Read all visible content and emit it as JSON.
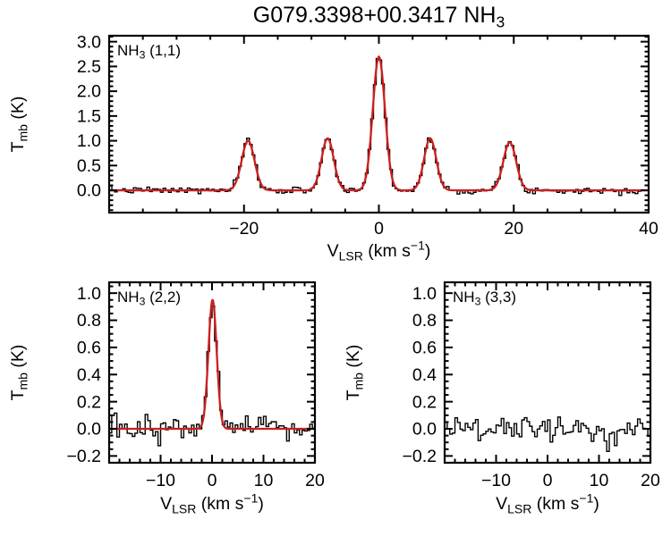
{
  "title_text": "G079.3398+00.3417 NH3",
  "title_parts": [
    {
      "t": "G079.3398+00.3417 NH"
    },
    {
      "t": "3",
      "s": "sub"
    }
  ],
  "colors": {
    "data": "#000000",
    "fit": "#cc1f1f",
    "axes": "#000000",
    "background": "#ffffff"
  },
  "chart_data": [
    {
      "type": "line",
      "panel": "NH3 (1,1)",
      "label_parts": [
        {
          "t": "NH"
        },
        {
          "t": "3",
          "s": "sub"
        },
        {
          "t": " (1,1)"
        }
      ],
      "xlabel_text": "V_LSR (km s-1)",
      "xlabel_parts": [
        {
          "t": "V"
        },
        {
          "t": "LSR",
          "s": "sub"
        },
        {
          "t": " (km s"
        },
        {
          "t": "−1",
          "s": "sup"
        },
        {
          "t": ")"
        }
      ],
      "ylabel_text": "T_mb (K)",
      "ylabel_parts": [
        {
          "t": "T"
        },
        {
          "t": "mb",
          "s": "sub"
        },
        {
          "t": " (K)"
        }
      ],
      "xlim": [
        -40,
        40
      ],
      "ylim": [
        -0.45,
        3.12
      ],
      "xticks": {
        "values": [
          -20,
          0,
          20,
          40
        ],
        "labels": [
          "−20",
          "0",
          "20",
          "40"
        ],
        "minor_step": 5
      },
      "yticks": {
        "values": [
          0.0,
          0.5,
          1.0,
          1.5,
          2.0,
          2.5,
          3.0
        ],
        "labels": [
          "0.0",
          "0.5",
          "1.0",
          "1.5",
          "2.0",
          "2.5",
          "3.0"
        ],
        "minor_step": 0.1
      },
      "series": [
        {
          "name": "observed NH3 (1,1) spectrum",
          "style": "histogram",
          "color": "#000000",
          "channel_width": 0.4,
          "noise_sigma": 0.033,
          "seed": 7
        },
        {
          "name": "hyperfine Gaussian fit",
          "style": "smooth",
          "color": "#cc1f1f"
        }
      ],
      "fit_peaks": [
        {
          "center": -19.4,
          "amplitude": 1.0,
          "sigma": 0.95
        },
        {
          "center": -7.6,
          "amplitude": 1.05,
          "sigma": 0.9
        },
        {
          "center": 0.0,
          "amplitude": 2.7,
          "sigma": 0.9
        },
        {
          "center": 7.6,
          "amplitude": 1.05,
          "sigma": 0.9
        },
        {
          "center": 19.4,
          "amplitude": 0.97,
          "sigma": 0.95
        }
      ]
    },
    {
      "type": "line",
      "panel": "NH3 (2,2)",
      "label_parts": [
        {
          "t": "NH"
        },
        {
          "t": "3",
          "s": "sub"
        },
        {
          "t": " (2,2)"
        }
      ],
      "xlabel_text": "V_LSR (km s-1)",
      "xlabel_parts": [
        {
          "t": "V"
        },
        {
          "t": "LSR",
          "s": "sub"
        },
        {
          "t": " (km s"
        },
        {
          "t": "−1",
          "s": "sup"
        },
        {
          "t": ")"
        }
      ],
      "ylabel_text": "T_mb (K)",
      "ylabel_parts": [
        {
          "t": "T"
        },
        {
          "t": "mb",
          "s": "sub"
        },
        {
          "t": " (K)"
        }
      ],
      "xlim": [
        -20,
        20
      ],
      "ylim": [
        -0.25,
        1.08
      ],
      "xticks": {
        "values": [
          -10,
          0,
          10,
          20
        ],
        "labels": [
          "−10",
          "0",
          "10",
          "20"
        ],
        "minor_step": 2
      },
      "yticks": {
        "values": [
          -0.2,
          0.0,
          0.2,
          0.4,
          0.6,
          0.8,
          1.0
        ],
        "labels": [
          "−0.2",
          "0.0",
          "0.2",
          "0.4",
          "0.6",
          "0.8",
          "1.0"
        ],
        "minor_step": 0.05
      },
      "series": [
        {
          "name": "observed NH3 (2,2) spectrum",
          "style": "histogram",
          "color": "#000000",
          "channel_width": 0.5,
          "noise_sigma": 0.045,
          "seed": 13
        },
        {
          "name": "Gaussian fit",
          "style": "smooth",
          "color": "#cc1f1f"
        }
      ],
      "fit_peaks": [
        {
          "center": 0.1,
          "amplitude": 0.95,
          "sigma": 0.8
        }
      ]
    },
    {
      "type": "line",
      "panel": "NH3 (3,3)",
      "label_parts": [
        {
          "t": "NH"
        },
        {
          "t": "3",
          "s": "sub"
        },
        {
          "t": " (3,3)"
        }
      ],
      "xlabel_text": "V_LSR (km s-1)",
      "xlabel_parts": [
        {
          "t": "V"
        },
        {
          "t": "LSR",
          "s": "sub"
        },
        {
          "t": " (km s"
        },
        {
          "t": "−1",
          "s": "sup"
        },
        {
          "t": ")"
        }
      ],
      "ylabel_text": "T_mb (K)",
      "ylabel_parts": [
        {
          "t": "T"
        },
        {
          "t": "mb",
          "s": "sub"
        },
        {
          "t": " (K)"
        }
      ],
      "xlim": [
        -20,
        20
      ],
      "ylim": [
        -0.25,
        1.08
      ],
      "xticks": {
        "values": [
          -10,
          0,
          10,
          20
        ],
        "labels": [
          "−10",
          "0",
          "10",
          "20"
        ],
        "minor_step": 2
      },
      "yticks": {
        "values": [
          -0.2,
          0.0,
          0.2,
          0.4,
          0.6,
          0.8,
          1.0
        ],
        "labels": [
          "−0.2",
          "0.0",
          "0.2",
          "0.4",
          "0.6",
          "0.8",
          "1.0"
        ],
        "minor_step": 0.05
      },
      "series": [
        {
          "name": "observed NH3 (3,3) spectrum (no detection)",
          "style": "histogram",
          "color": "#000000",
          "channel_width": 0.5,
          "noise_sigma": 0.05,
          "seed": 29
        }
      ],
      "fit_peaks": []
    }
  ]
}
